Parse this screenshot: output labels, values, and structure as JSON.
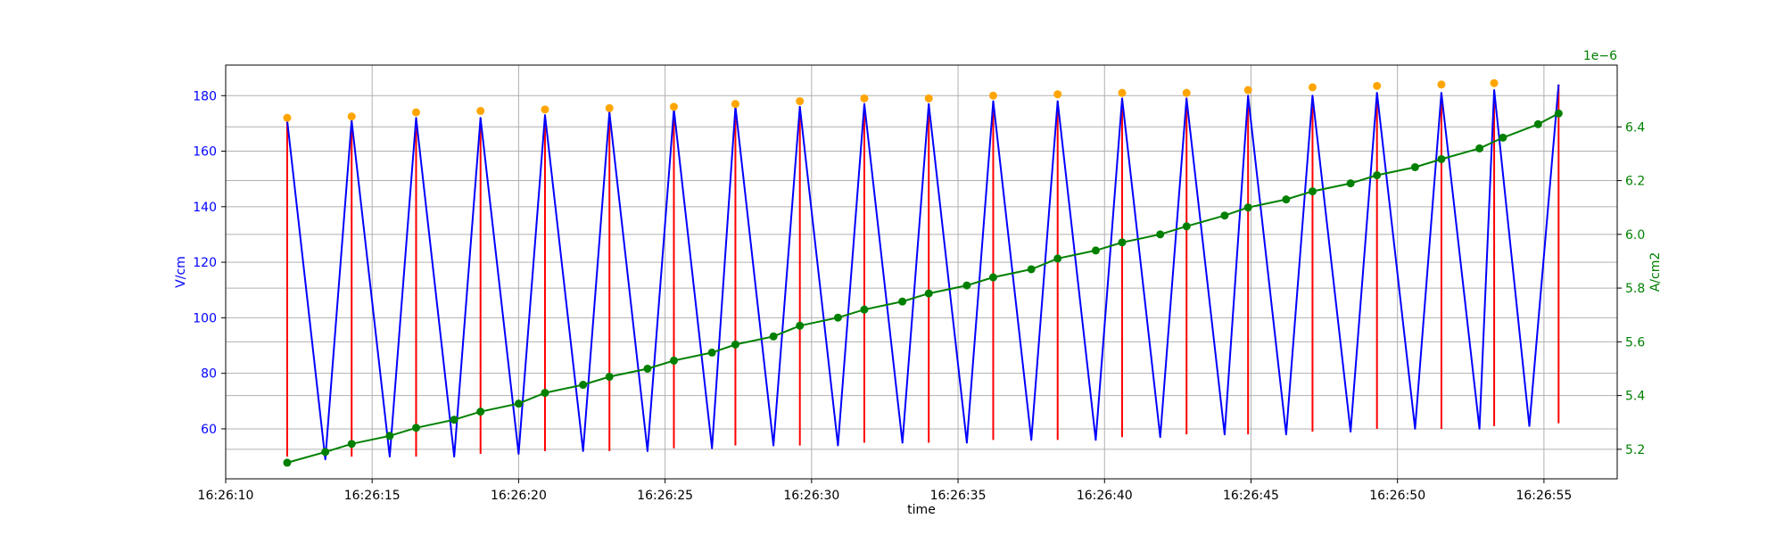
{
  "chart_data": {
    "type": "line",
    "xlabel": "time",
    "ylabel_left": "V/cm",
    "ylabel_right": "A/cm2",
    "right_axis_offset_text": "1e−6",
    "x_ticks": [
      "16:26:10",
      "16:26:15",
      "16:26:20",
      "16:26:25",
      "16:26:30",
      "16:26:35",
      "16:26:40",
      "16:26:45",
      "16:26:50",
      "16:26:55"
    ],
    "x_tick_seconds": [
      10,
      15,
      20,
      25,
      30,
      35,
      40,
      45,
      50,
      55
    ],
    "xlim_seconds": [
      10.0,
      57.5
    ],
    "ylim_left": [
      42,
      191
    ],
    "ylim_right": [
      5.09,
      6.63
    ],
    "y_ticks_left": [
      "60",
      "80",
      "100",
      "120",
      "140",
      "160",
      "180"
    ],
    "y_tick_values_left": [
      60,
      80,
      100,
      120,
      140,
      160,
      180
    ],
    "y_ticks_right": [
      "5.2",
      "5.4",
      "5.6",
      "5.8",
      "6.0",
      "6.2",
      "6.4"
    ],
    "y_tick_values_right": [
      5.2,
      5.4,
      5.6,
      5.8,
      6.0,
      6.2,
      6.4
    ],
    "grid": true,
    "colors": {
      "voltage": "#0000ff",
      "stems": "#ff0000",
      "peaks": "#ffa500",
      "current": "#008000",
      "grid": "#b0b0b0",
      "left_axis": "#0000ff",
      "right_axis": "#008000"
    },
    "series": [
      {
        "axis": "left",
        "style": "line",
        "x_seconds": [
          12.1,
          13.4,
          14.3,
          15.6,
          16.5,
          17.8,
          18.7,
          20.0,
          20.9,
          22.2,
          23.1,
          24.4,
          25.3,
          26.6,
          27.4,
          28.7,
          29.6,
          30.9,
          31.8,
          33.1,
          34.0,
          35.3,
          36.2,
          37.5,
          38.4,
          39.7,
          40.6,
          41.9,
          42.8,
          44.1,
          44.9,
          46.2,
          47.1,
          48.4,
          49.3,
          50.6,
          51.5,
          52.8,
          53.3,
          54.5,
          55.5
        ],
        "values": [
          171,
          49,
          171,
          50,
          172,
          50,
          172,
          51,
          173,
          52,
          174,
          52,
          175,
          53,
          176,
          54,
          176,
          54,
          177,
          55,
          177,
          55,
          178,
          56,
          178,
          56,
          179,
          57,
          179,
          58,
          180,
          58,
          180,
          59,
          181,
          60,
          181,
          60,
          182,
          61,
          184
        ]
      },
      {
        "axis": "left",
        "style": "stems",
        "x_seconds": [
          12.1,
          14.3,
          16.5,
          18.7,
          20.9,
          23.1,
          25.3,
          27.4,
          29.6,
          31.8,
          34.0,
          36.2,
          38.4,
          40.6,
          42.8,
          44.9,
          47.1,
          49.3,
          51.5,
          53.3,
          55.5
        ],
        "stem_bottom": [
          50,
          50,
          50,
          51,
          52,
          52,
          53,
          54,
          54,
          55,
          55,
          56,
          56,
          57,
          58,
          58,
          59,
          60,
          60,
          61,
          62
        ],
        "stem_top": [
          171,
          171,
          172,
          172,
          173,
          174,
          175,
          176,
          176,
          177,
          177,
          178,
          178,
          179,
          179,
          180,
          180,
          181,
          181,
          182,
          184
        ]
      },
      {
        "axis": "left",
        "style": "markers",
        "x_seconds": [
          12.1,
          14.3,
          16.5,
          18.7,
          20.9,
          23.1,
          25.3,
          27.4,
          29.6,
          31.8,
          34.0,
          36.2,
          38.4,
          40.6,
          42.8,
          44.9,
          47.1,
          49.3,
          51.5,
          53.3
        ],
        "values": [
          172,
          172.5,
          174,
          174.5,
          175,
          175.5,
          176,
          177,
          178,
          179,
          179,
          180,
          180.5,
          181,
          181,
          182,
          183,
          183.5,
          184,
          184.5
        ]
      },
      {
        "axis": "right",
        "style": "line-markers",
        "x_seconds": [
          12.1,
          13.4,
          14.3,
          15.6,
          16.5,
          17.8,
          18.7,
          20.0,
          20.9,
          22.2,
          23.1,
          24.4,
          25.3,
          26.6,
          27.4,
          28.7,
          29.6,
          30.9,
          31.8,
          33.1,
          34.0,
          35.3,
          36.2,
          37.5,
          38.4,
          39.7,
          40.6,
          41.9,
          42.8,
          44.1,
          44.9,
          46.2,
          47.1,
          48.4,
          49.3,
          50.6,
          51.5,
          52.8,
          53.6,
          54.8,
          55.5
        ],
        "values": [
          5.15,
          5.19,
          5.22,
          5.25,
          5.28,
          5.31,
          5.34,
          5.37,
          5.41,
          5.44,
          5.47,
          5.5,
          5.53,
          5.56,
          5.59,
          5.62,
          5.66,
          5.69,
          5.72,
          5.75,
          5.78,
          5.81,
          5.84,
          5.87,
          5.91,
          5.94,
          5.97,
          6.0,
          6.03,
          6.07,
          6.1,
          6.13,
          6.16,
          6.19,
          6.22,
          6.25,
          6.28,
          6.32,
          6.36,
          6.41,
          6.45
        ]
      }
    ]
  }
}
